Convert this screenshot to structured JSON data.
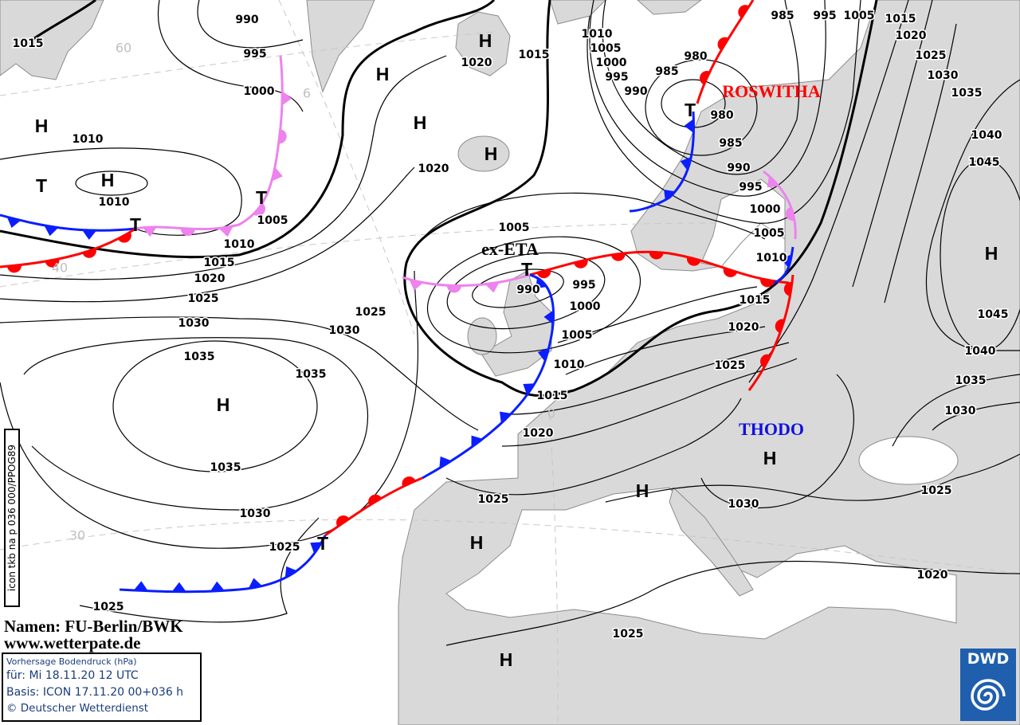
{
  "map": {
    "isobar_labels": [
      "1015",
      "990",
      "995",
      "1000",
      "1010",
      "1010",
      "1005",
      "1010",
      "1015",
      "1020",
      "1025",
      "1030",
      "1035",
      "1030",
      "1025",
      "1035",
      "1035",
      "1030",
      "1025",
      "1025",
      "1020",
      "1020",
      "1015",
      "1010",
      "1005",
      "1000",
      "995",
      "990",
      "985",
      "980",
      "985",
      "995",
      "1005",
      "1015",
      "1020",
      "1025",
      "1030",
      "1035",
      "1040",
      "1045",
      "980",
      "985",
      "990",
      "995",
      "1000",
      "1005",
      "1010",
      "1015",
      "1020",
      "1025",
      "1005",
      "990",
      "995",
      "1000",
      "1005",
      "1010",
      "1015",
      "1020",
      "1025",
      "1030",
      "1045",
      "1040",
      "1035",
      "1030",
      "1025",
      "1020",
      "1025"
    ],
    "pressure_centers": [
      "H",
      "T",
      "H",
      "T",
      "T",
      "H",
      "H",
      "H",
      "H",
      "T",
      "T",
      "H",
      "H",
      "H",
      "H",
      "H",
      "H",
      "T"
    ],
    "latitude_labels": [
      "60",
      "6",
      "40",
      "30",
      "0"
    ],
    "system_names": {
      "ex_eta": "ex-ETA",
      "roswitha": "ROSWITHA",
      "thodo": "THODO"
    },
    "colors": {
      "cold_front": "#0a1eff",
      "warm_front": "#ff0000",
      "occlusion": "#ee82ee",
      "land": "#d9d9d9",
      "roswitha": "#ff0000",
      "thodo": "#1010e0",
      "dwd_blue": "#1f5fae"
    }
  },
  "credit": {
    "names": "Namen: FU-Berlin/BWK",
    "website": "www.wetterpate.de"
  },
  "info": {
    "title": "Vorhersage Bodendruck (hPa)",
    "valid": "für:  Mi 18.11.20  12 UTC",
    "basis": "Basis: ICON  17.11.20 00+036 h",
    "copyright": "© Deutscher Wetterdienst"
  },
  "run_id": "icon tkb na p 036 000/PPOG89",
  "logo": {
    "text": "DWD"
  }
}
